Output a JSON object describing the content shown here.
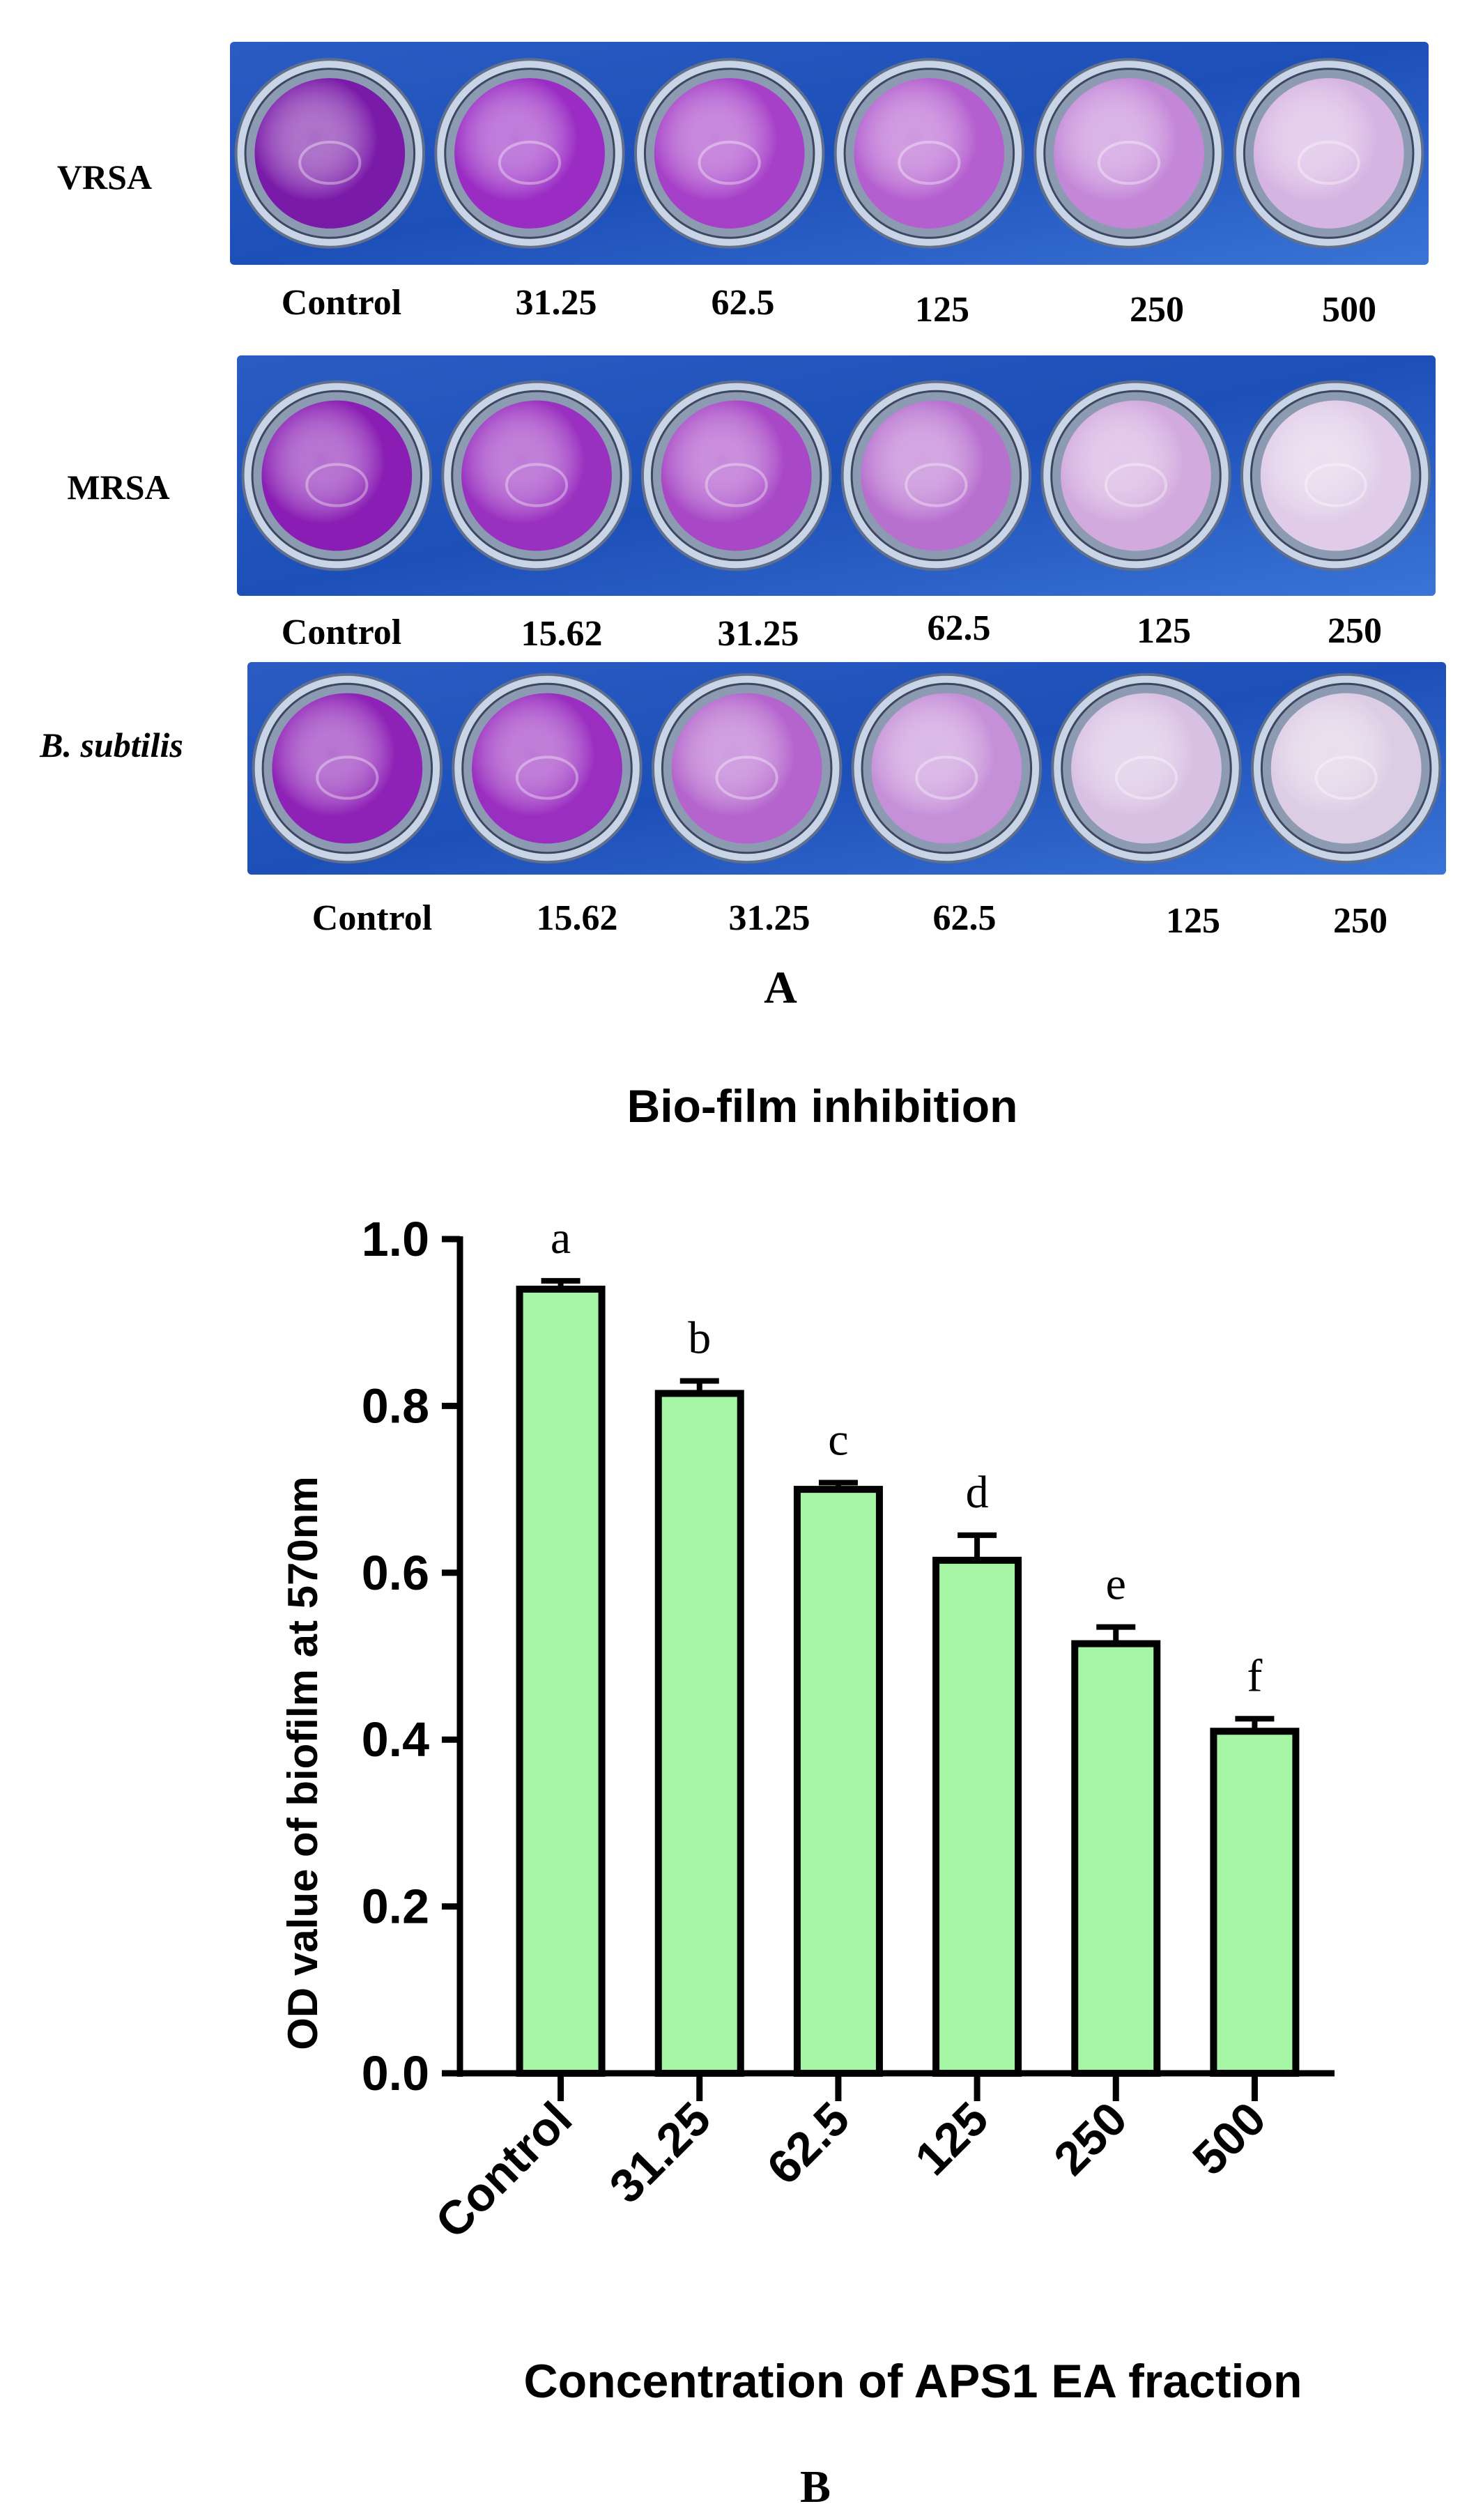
{
  "panel_a": {
    "letter": "A",
    "rows": [
      {
        "name": "VRSA",
        "italic": false,
        "concentrations": [
          "Control",
          "31.25",
          "62.5",
          "125",
          "250",
          "500"
        ],
        "well_colors": [
          "#7a1aa8",
          "#9a2cc4",
          "#a640c8",
          "#b45ecf",
          "#c487d8",
          "#d6b4e2"
        ]
      },
      {
        "name": "MRSA",
        "italic": false,
        "concentrations": [
          "Control",
          "15.62",
          "31.25",
          "62.5",
          "125",
          "250"
        ],
        "well_colors": [
          "#8a1eb4",
          "#9a30c0",
          "#a848c6",
          "#b870cf",
          "#d2aade",
          "#e0cce8"
        ]
      },
      {
        "name": "B. subtilis",
        "italic": true,
        "concentrations": [
          "Control",
          "15.62",
          "31.25",
          "62.5",
          "125",
          "250"
        ],
        "well_colors": [
          "#8e22b6",
          "#9a2ec0",
          "#b464cc",
          "#c690d8",
          "#d8c0e2",
          "#dccce4"
        ]
      }
    ],
    "plate_blue": "#1d4fb8"
  },
  "panel_b": {
    "letter": "B"
  },
  "chart_data": {
    "type": "bar",
    "title": "Bio-film inhibition",
    "xlabel": "Concentration of APS1 EA fraction",
    "ylabel": "OD value of biofilm at 570nm",
    "categories": [
      "Control",
      "31.25",
      "62.5",
      "125",
      "250",
      "500"
    ],
    "values": [
      0.94,
      0.815,
      0.7,
      0.615,
      0.515,
      0.41
    ],
    "errors": [
      0.01,
      0.015,
      0.008,
      0.03,
      0.02,
      0.015
    ],
    "significance_letters": [
      "a",
      "b",
      "c",
      "d",
      "e",
      "f"
    ],
    "ylim": [
      0,
      1.0
    ],
    "yticks": [
      0.0,
      0.2,
      0.4,
      0.6,
      0.8,
      1.0
    ],
    "ytick_labels": [
      "0.0",
      "0.2",
      "0.4",
      "0.6",
      "0.8",
      "1.0"
    ],
    "bar_color": "#a6f5a4",
    "edge_color": "#000000",
    "grid": false,
    "legend": "none"
  }
}
